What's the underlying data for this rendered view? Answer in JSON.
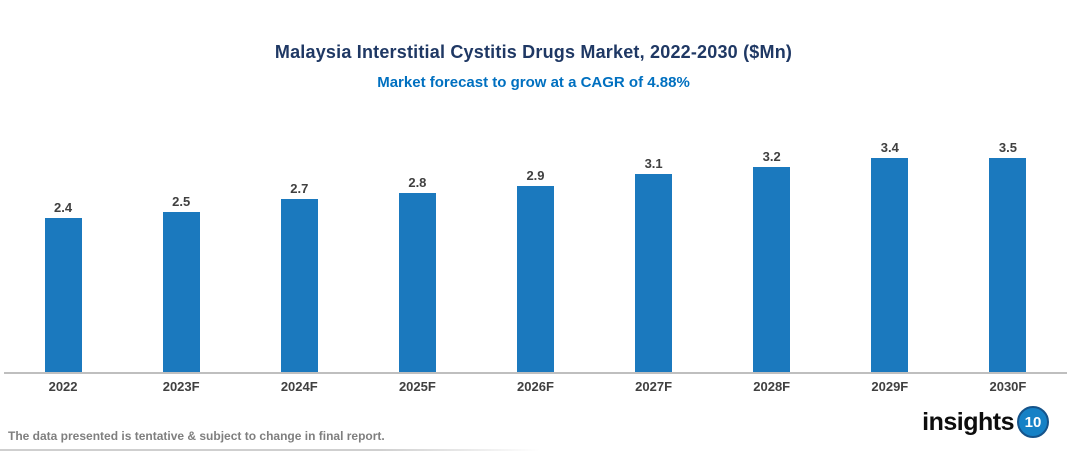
{
  "header": {
    "title": "Malaysia Interstitial Cystitis Drugs Market, 2022-2030 ($Mn)",
    "subtitle": "Market forecast to grow at a CAGR of 4.88%"
  },
  "chart_data": {
    "type": "bar",
    "title": "Malaysia Interstitial Cystitis Drugs Market, 2022-2030 ($Mn)",
    "subtitle": "Market forecast to grow at a CAGR of 4.88%",
    "categories": [
      "2022",
      "2023F",
      "2024F",
      "2025F",
      "2026F",
      "2027F",
      "2028F",
      "2029F",
      "2030F"
    ],
    "values": [
      2.4,
      2.5,
      2.7,
      2.8,
      2.9,
      3.1,
      3.2,
      3.4,
      3.5
    ],
    "value_labels": [
      "2.4",
      "2.5",
      "2.7",
      "2.8",
      "2.9",
      "3.1",
      "3.2",
      "3.4",
      "3.5"
    ],
    "xlabel": "",
    "ylabel": "",
    "ylim": [
      0,
      3.7
    ],
    "grid": "off",
    "legend": "none",
    "value_labels_position": "above-bar"
  },
  "footer": {
    "disclaimer": "The data presented is tentative & subject to change in final report.",
    "logo_text": "insights",
    "logo_badge": "10"
  },
  "colors": {
    "title": "#1F3864",
    "subtitle": "#0070C0",
    "bar": "#1B79BE",
    "value_label": "#404040",
    "axis_line": "#BFBFBF",
    "x_label": "#404040",
    "footer_text": "#7F7F7F",
    "logo_text": "#0D0D0D",
    "logo_badge_bg": "#1581C6",
    "logo_badge_text": "#FFFFFF"
  }
}
